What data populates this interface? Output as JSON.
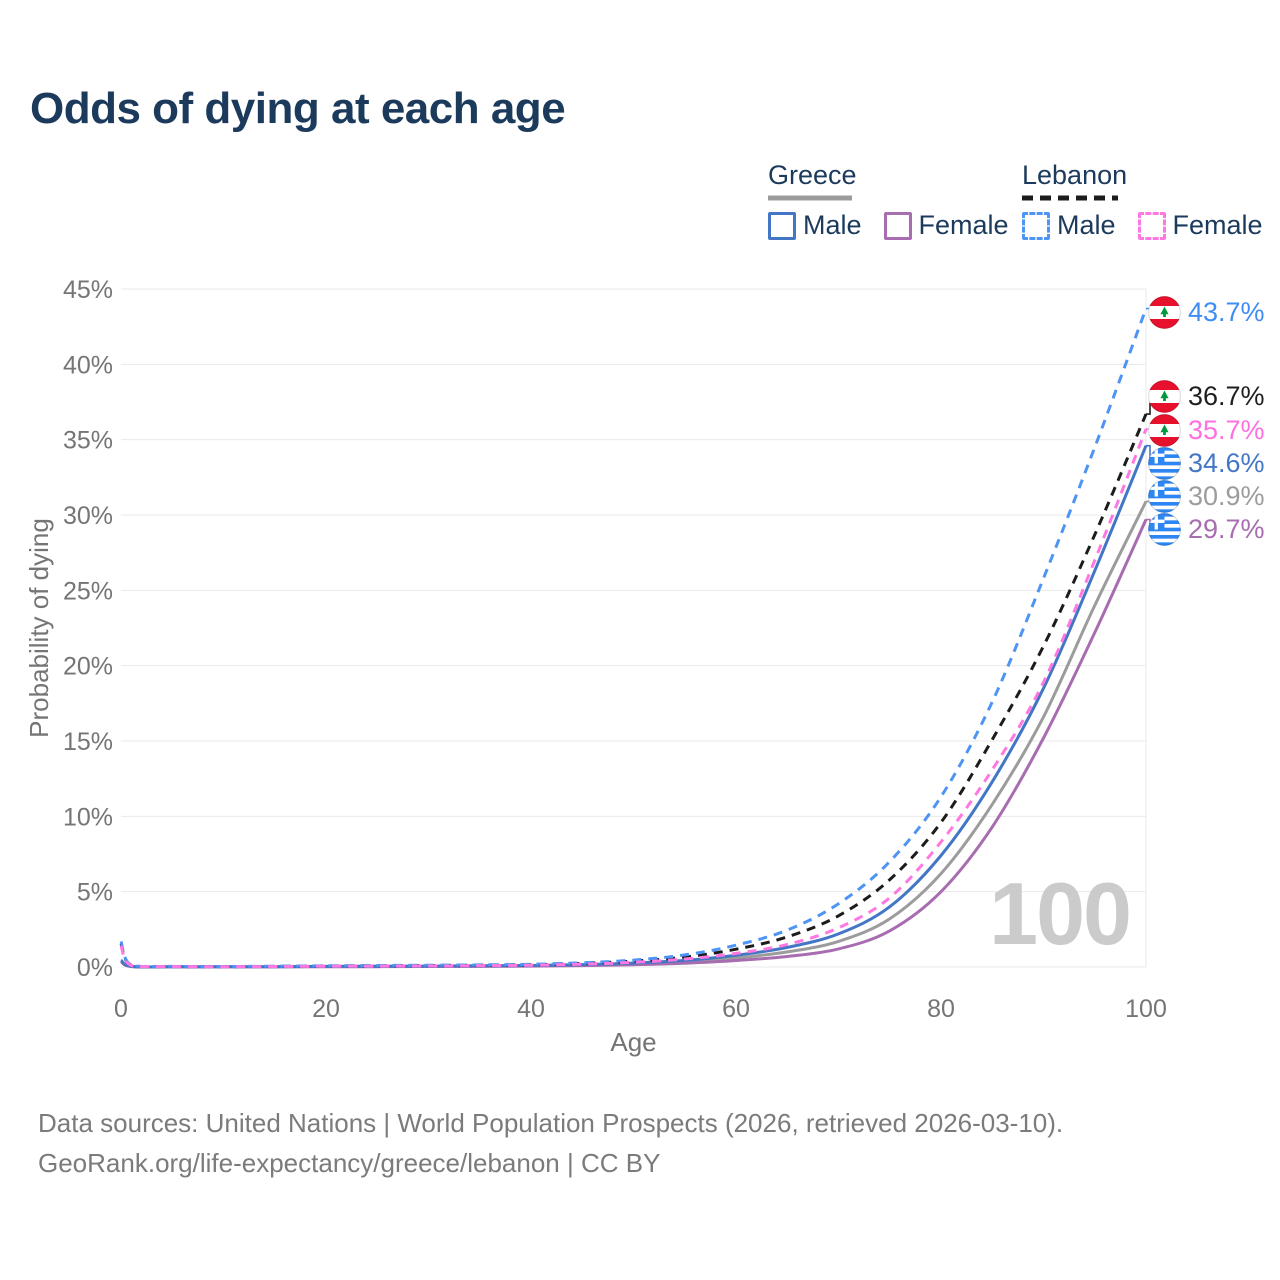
{
  "title": "Odds of dying at each age",
  "legend": {
    "groups": [
      {
        "country": "Greece",
        "line_style": "solid",
        "underline_color": "#9C9C9C",
        "items": [
          {
            "label": "Male",
            "color": "#4377C6"
          },
          {
            "label": "Female",
            "color": "#A86CB0"
          }
        ]
      },
      {
        "country": "Lebanon",
        "line_style": "dashed",
        "underline_color": "#1C1C1C",
        "items": [
          {
            "label": "Male",
            "color": "#4D94F5"
          },
          {
            "label": "Female",
            "color": "#FF78E2"
          }
        ]
      }
    ]
  },
  "chart_data": {
    "type": "line",
    "title": "Odds of dying at each age",
    "xlabel": "Age",
    "ylabel": "Probability of dying",
    "xlim": [
      0,
      100
    ],
    "ylim": [
      0,
      45
    ],
    "x_ticks": [
      0,
      20,
      40,
      60,
      80,
      100
    ],
    "y_ticks": [
      "0%",
      "5%",
      "10%",
      "15%",
      "20%",
      "25%",
      "30%",
      "35%",
      "40%",
      "45%"
    ],
    "grid": "horizontal",
    "legend_position": "top-right",
    "x": [
      0,
      1,
      5,
      10,
      15,
      20,
      25,
      30,
      35,
      40,
      45,
      50,
      55,
      60,
      65,
      70,
      75,
      80,
      85,
      90,
      95,
      100
    ],
    "series": [
      {
        "id": "greece-both",
        "name": "Greece (both sexes)",
        "country": "Greece",
        "color": "#9C9C9C",
        "dash": null,
        "end_value_pct": 30.9,
        "values": [
          0.4,
          0.035,
          0.01,
          0.01,
          0.015,
          0.03,
          0.04,
          0.05,
          0.06,
          0.08,
          0.13,
          0.2,
          0.34,
          0.6,
          1.0,
          1.7,
          3.2,
          6.2,
          10.8,
          16.6,
          24.0,
          30.9
        ]
      },
      {
        "id": "greece-female",
        "name": "Greece Female",
        "country": "Greece",
        "color": "#A86CB0",
        "dash": null,
        "end_value_pct": 29.7,
        "values": [
          0.35,
          0.03,
          0.01,
          0.01,
          0.01,
          0.02,
          0.02,
          0.03,
          0.04,
          0.06,
          0.09,
          0.15,
          0.25,
          0.43,
          0.7,
          1.2,
          2.4,
          5.0,
          9.3,
          15.2,
          22.2,
          29.7
        ]
      },
      {
        "id": "greece-male",
        "name": "Greece Male",
        "country": "Greece",
        "color": "#4377C6",
        "dash": null,
        "end_value_pct": 34.6,
        "values": [
          0.45,
          0.04,
          0.01,
          0.01,
          0.02,
          0.04,
          0.05,
          0.06,
          0.08,
          0.1,
          0.16,
          0.26,
          0.44,
          0.78,
          1.3,
          2.2,
          4.0,
          7.4,
          12.3,
          18.5,
          26.3,
          34.6
        ]
      },
      {
        "id": "lebanon-both",
        "name": "Lebanon (both sexes)",
        "country": "Lebanon",
        "color": "#1C1C1C",
        "dash": "9 7",
        "end_value_pct": 36.7,
        "values": [
          1.55,
          0.11,
          0.035,
          0.025,
          0.04,
          0.065,
          0.08,
          0.1,
          0.12,
          0.15,
          0.24,
          0.39,
          0.66,
          1.18,
          2.0,
          3.4,
          5.8,
          9.6,
          15.1,
          21.3,
          28.7,
          36.7
        ]
      },
      {
        "id": "lebanon-male",
        "name": "Lebanon Male",
        "country": "Lebanon",
        "color": "#4D94F5",
        "dash": "9 7",
        "end_value_pct": 43.7,
        "values": [
          1.7,
          0.12,
          0.04,
          0.03,
          0.05,
          0.08,
          0.1,
          0.12,
          0.14,
          0.18,
          0.28,
          0.46,
          0.8,
          1.45,
          2.45,
          4.2,
          7.0,
          11.3,
          17.6,
          25.8,
          34.5,
          43.7
        ]
      },
      {
        "id": "lebanon-female",
        "name": "Lebanon Female",
        "country": "Lebanon",
        "color": "#FF78E2",
        "dash": "9 7",
        "end_value_pct": 35.7,
        "values": [
          1.4,
          0.1,
          0.03,
          0.02,
          0.03,
          0.05,
          0.06,
          0.07,
          0.09,
          0.12,
          0.19,
          0.31,
          0.53,
          0.9,
          1.5,
          2.6,
          4.6,
          8.3,
          13.1,
          18.9,
          27.0,
          35.7
        ]
      }
    ]
  },
  "annotations": [
    {
      "series": "Lebanon Male",
      "flag": "lebanon",
      "value": 43.7,
      "label": "43.7%",
      "color": "#3F8CF4"
    },
    {
      "series": "Lebanon (both sexes)",
      "flag": "lebanon",
      "value": 36.7,
      "label": "36.7%",
      "color": "#1F1F1F"
    },
    {
      "series": "Lebanon Female",
      "flag": "lebanon",
      "value": 35.7,
      "label": "35.7%",
      "color": "#FF6FDF"
    },
    {
      "series": "Greece Male",
      "flag": "greece",
      "value": 34.6,
      "label": "34.6%",
      "color": "#4377C6"
    },
    {
      "series": "Greece (both sexes)",
      "flag": "greece",
      "value": 30.9,
      "label": "30.9%",
      "color": "#9C9C9C"
    },
    {
      "series": "Greece Female",
      "flag": "greece",
      "value": 29.7,
      "label": "29.7%",
      "color": "#A86CB0"
    }
  ],
  "age_marker": {
    "label": "100"
  },
  "footer": {
    "line1": "Data sources: United Nations | World Population Prospects (2026, retrieved 2026-03-10).",
    "line2": "GeoRank.org/life-expectancy/greece/lebanon | CC BY"
  }
}
